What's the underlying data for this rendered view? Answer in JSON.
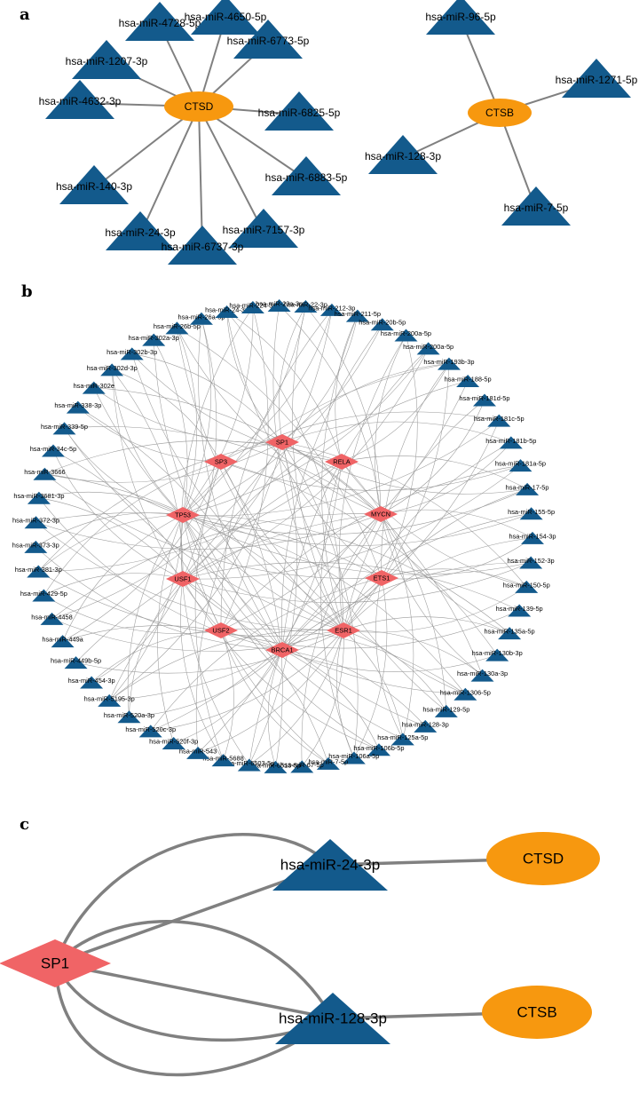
{
  "colors": {
    "mirna": "#135a8c",
    "gene": "#f7980f",
    "tf": "#f06466",
    "edge": "#808080"
  },
  "panels": {
    "a": {
      "label": "a",
      "networks": [
        {
          "hub": "CTSD",
          "mirnas": [
            "hsa-miR-4728-5p",
            "hsa-miR-4650-5p",
            "hsa-miR-6773-5p",
            "hsa-miR-1207-3p",
            "hsa-miR-4632-3p",
            "hsa-miR-6825-5p",
            "hsa-miR-140-3p",
            "hsa-miR-6883-5p",
            "hsa-miR-24-3p",
            "hsa-miR-7157-3p",
            "hsa-miR-6737-3p"
          ]
        },
        {
          "hub": "CTSB",
          "mirnas": [
            "hsa-miR-96-5p",
            "hsa-miR-1271-5p",
            "hsa-miR-128-3p",
            "hsa-miR-7-5p"
          ]
        }
      ]
    },
    "b": {
      "label": "b",
      "transcription_factors": [
        "SP1",
        "SP3",
        "RELA",
        "TP53",
        "MYCN",
        "USF1",
        "ETS1",
        "USF2",
        "ESR1",
        "BRCA1"
      ],
      "mirnas": [
        "hsa-miR-22-3p",
        "hsa-miR-212-3p",
        "hsa-miR-211-5p",
        "hsa-miR-20b-5p",
        "hsa-miR-200a-5p",
        "hsa-miR-200a-5p",
        "hsa-miR-193b-3p",
        "hsa-miR-188-5p",
        "hsa-miR-181d-5p",
        "hsa-miR-181c-5p",
        "hsa-miR-181b-5p",
        "hsa-miR-181a-5p",
        "hsa-miR-17-5p",
        "hsa-miR-155-5p",
        "hsa-miR-154-3p",
        "hsa-miR-152-3p",
        "hsa-miR-150-5p",
        "hsa-miR-139-5p",
        "hsa-miR-135a-5p",
        "hsa-miR-130b-3p",
        "hsa-miR-130a-3p",
        "hsa-miR-1306-5p",
        "hsa-miR-129-5p",
        "hsa-miR-128-3p",
        "hsa-miR-125a-5p",
        "hsa-miR-106b-5p",
        "hsa-miR-106a-5p",
        "hsa-miR-7-5p",
        "hsa-miR-67-5p",
        "hsa-miR-6513-5p",
        "hsa-miR-6503-5p",
        "hsa-miR-5688",
        "hsa-miR-543",
        "hsa-miR-520f-3p",
        "hsa-miR-520c-3p",
        "hsa-miR-520a-3p",
        "hsa-miR-5195-3p",
        "hsa-miR-454-3p",
        "hsa-miR-449b-5p",
        "hsa-miR-449a",
        "hsa-miR-4458",
        "hsa-miR-429-5p",
        "hsa-miR-381-3p",
        "hsa-miR-373-3p",
        "hsa-miR-372-3p",
        "hsa-miR-3681-3p",
        "hsa-miR-3666",
        "hsa-miR-34c-5p",
        "hsa-miR-339-5p",
        "hsa-miR-338-3p",
        "hsa-miR-302e",
        "hsa-miR-302d-3p",
        "hsa-miR-302b-3p",
        "hsa-miR-302a-3p",
        "hsa-miR-26b-5p",
        "hsa-miR-26a-5p",
        "hsa-miR-24-3p",
        "hsa-miR-224-3p",
        "hsa-miR-23a-3p"
      ]
    },
    "c": {
      "label": "c",
      "tf": "SP1",
      "mirnas": [
        "hsa-miR-24-3p",
        "hsa-miR-128-3p"
      ],
      "genes": [
        "CTSD",
        "CTSB"
      ]
    }
  }
}
